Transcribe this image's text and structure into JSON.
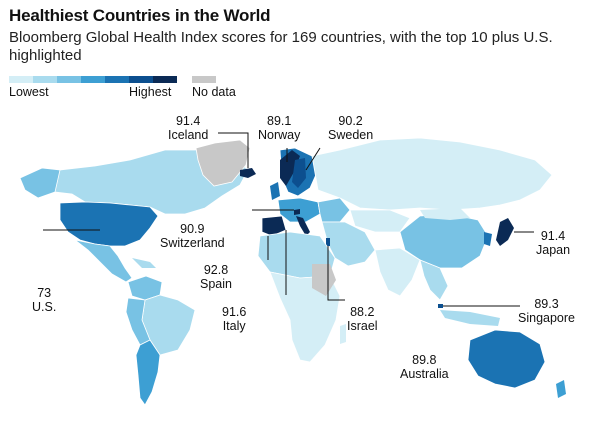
{
  "title": "Healthiest Countries in the World",
  "subtitle": "Bloomberg Global Health Index scores for 169 countries, with the top 10 plus U.S. highlighted",
  "legend": {
    "low_label": "Lowest",
    "high_label": "Highest",
    "nodata_label": "No data",
    "colors": [
      "#d4eef6",
      "#a9dbee",
      "#78c2e4",
      "#3d9fd3",
      "#1b73b3",
      "#0c4f8f",
      "#0b2a55"
    ],
    "nodata_color": "#c8c8c8"
  },
  "countries": [
    {
      "name": "Iceland",
      "score": "91.4"
    },
    {
      "name": "Norway",
      "score": "89.1"
    },
    {
      "name": "Sweden",
      "score": "90.2"
    },
    {
      "name": "Switzerland",
      "score": "90.9"
    },
    {
      "name": "Japan",
      "score": "91.4"
    },
    {
      "name": "Spain",
      "score": "92.8"
    },
    {
      "name": "U.S.",
      "score": "73"
    },
    {
      "name": "Italy",
      "score": "91.6"
    },
    {
      "name": "Israel",
      "score": "88.2"
    },
    {
      "name": "Singapore",
      "score": "89.3"
    },
    {
      "name": "Australia",
      "score": "89.8"
    }
  ]
}
